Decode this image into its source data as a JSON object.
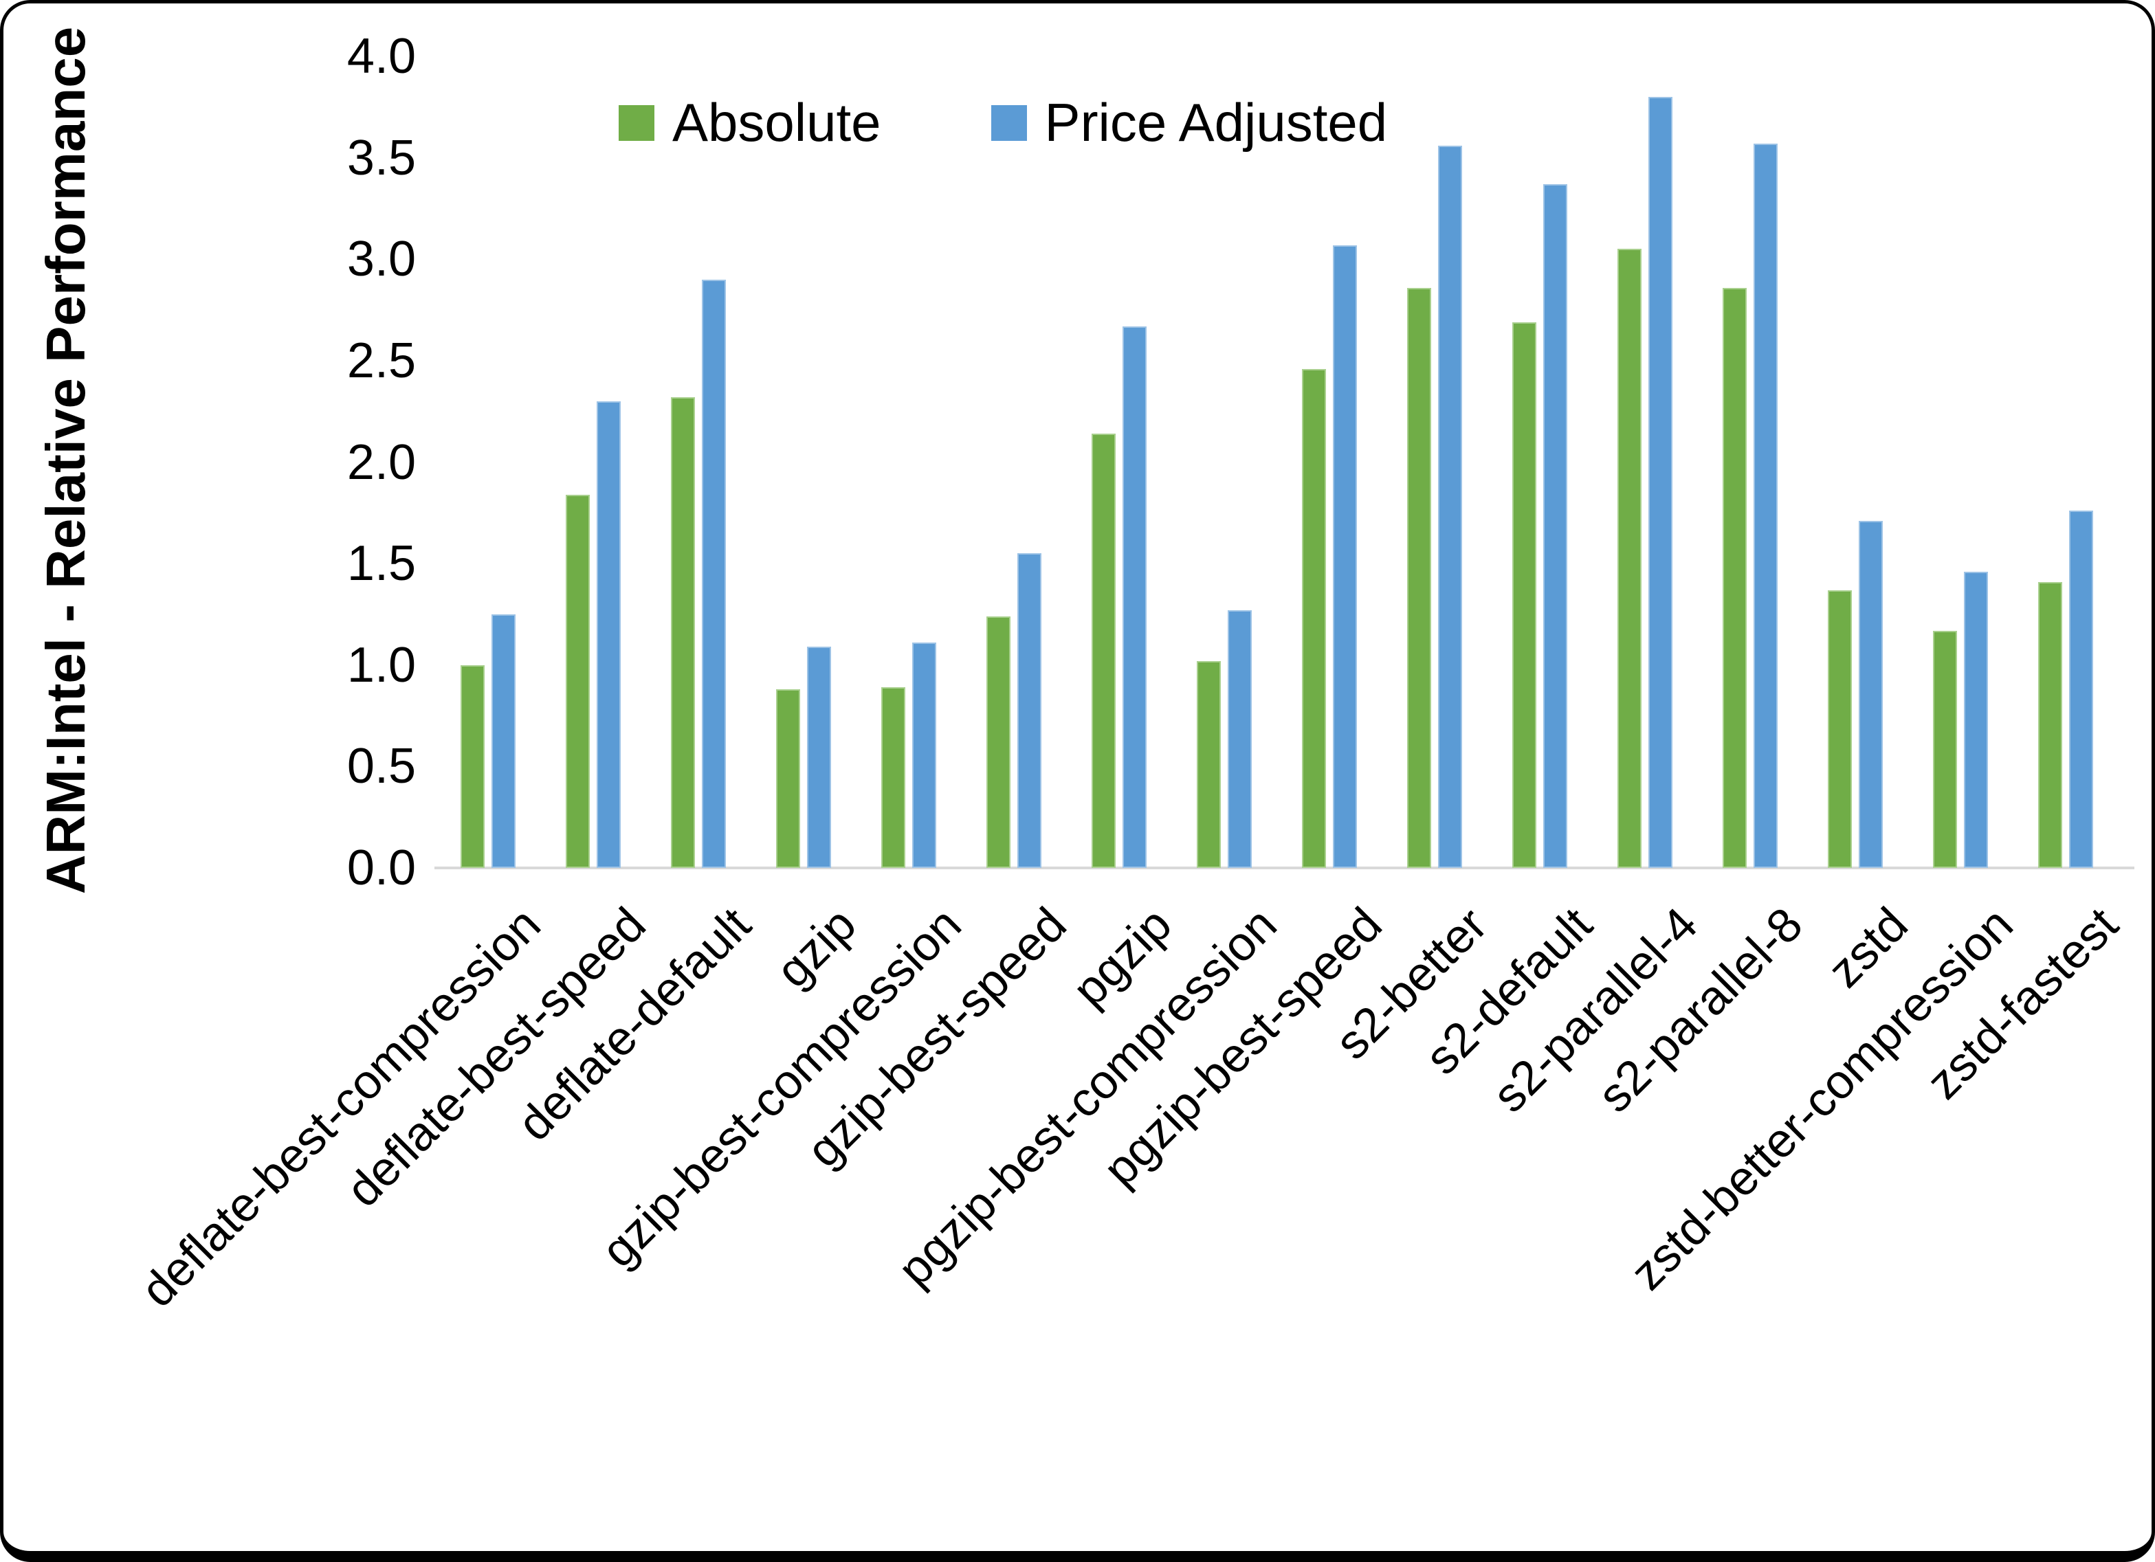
{
  "y_axis": {
    "title": "ARM:Intel - Relative Performance",
    "tick_labels": [
      "0.0",
      "0.5",
      "1.0",
      "1.5",
      "2.0",
      "2.5",
      "3.0",
      "3.5",
      "4.0"
    ]
  },
  "legend": {
    "absolute_label": "Absolute",
    "price_adjusted_label": "Price Adjusted"
  },
  "colors": {
    "absolute": "#70AD47",
    "price_adjusted": "#5B9BD5",
    "axis_line": "#D9D9D9",
    "text": "#000000"
  },
  "chart_data": {
    "type": "bar",
    "title": "",
    "xlabel": "",
    "ylabel": "ARM:Intel - Relative Performance",
    "ylim": [
      0.0,
      4.0
    ],
    "ytick_step": 0.5,
    "grid": false,
    "legend_position": "top-center",
    "categories": [
      "deflate-best-compression",
      "deflate-best-speed",
      "deflate-default",
      "gzip",
      "gzip-best-compression",
      "gzip-best-speed",
      "pgzip",
      "pgzip-best-compression",
      "pgzip-best-speed",
      "s2-better",
      "s2-default",
      "s2-parallel-4",
      "s2-parallel-8",
      "zstd",
      "zstd-better-compression",
      "zstd-fastest"
    ],
    "series": [
      {
        "name": "Absolute",
        "color": "#70AD47",
        "values": [
          1.0,
          1.84,
          2.32,
          0.88,
          0.89,
          1.24,
          2.14,
          1.02,
          2.46,
          2.86,
          2.69,
          3.05,
          2.86,
          1.37,
          1.17,
          1.41
        ]
      },
      {
        "name": "Price Adjusted",
        "color": "#5B9BD5",
        "values": [
          1.25,
          2.3,
          2.9,
          1.09,
          1.11,
          1.55,
          2.67,
          1.27,
          3.07,
          3.56,
          3.37,
          3.8,
          3.57,
          1.71,
          1.46,
          1.76
        ]
      }
    ]
  }
}
